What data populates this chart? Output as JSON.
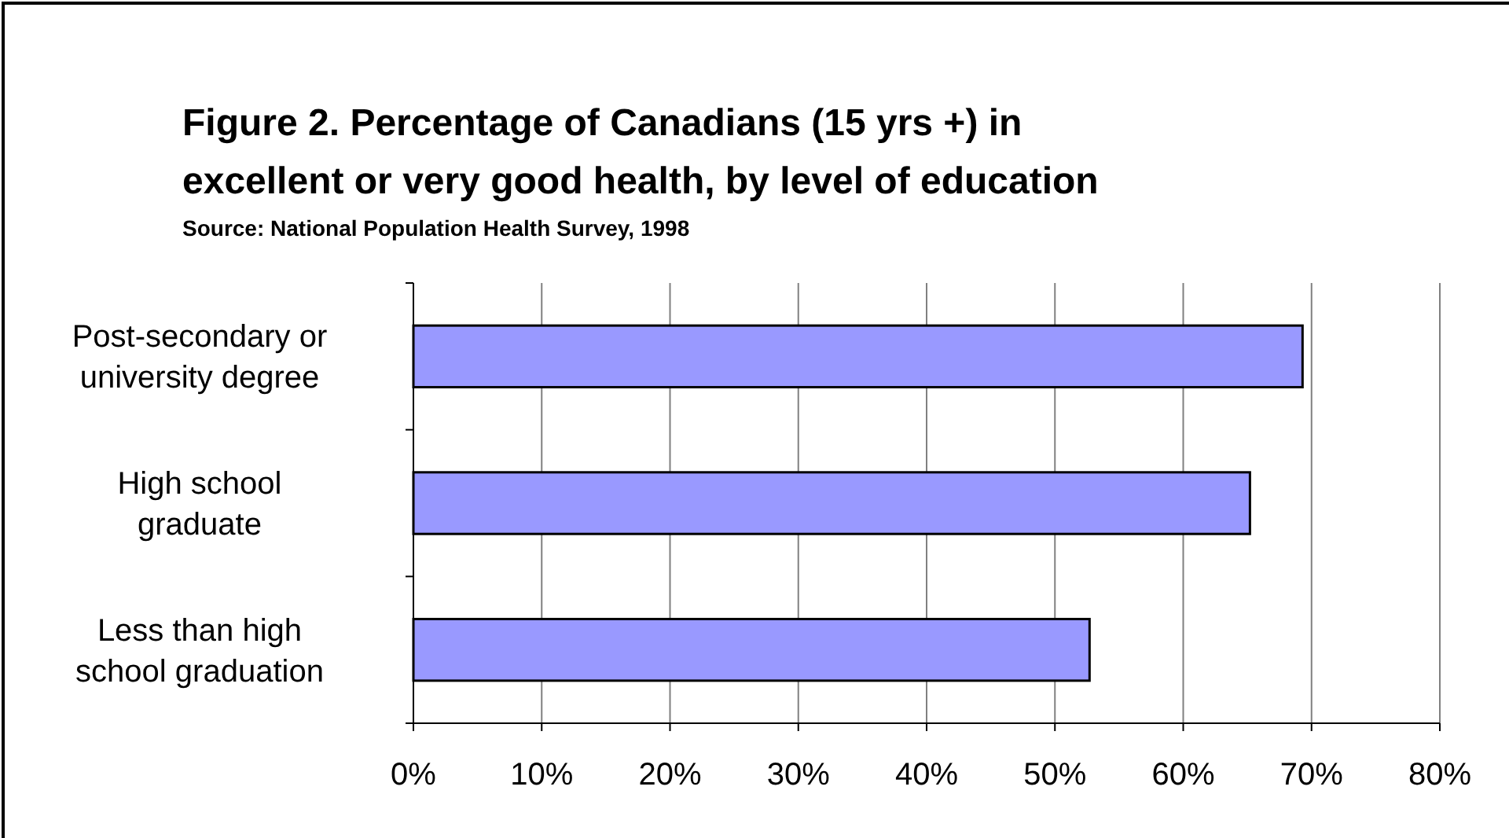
{
  "chart_data": {
    "type": "bar",
    "orientation": "horizontal",
    "title": "Figure 2. Percentage of Canadians (15 yrs +) in excellent or very good health, by level of education",
    "subtitle": "Source: National Population Health Survey, 1998",
    "categories": [
      "Post-secondary or university degree",
      "High school graduate",
      "Less than high school graduation"
    ],
    "values": [
      69.3,
      65.2,
      52.7
    ],
    "color": "#9999ff",
    "xlim": [
      0,
      80
    ],
    "xticks": [
      {
        "value": 0,
        "label": "0%"
      },
      {
        "value": 10,
        "label": "10%"
      },
      {
        "value": 20,
        "label": "20%"
      },
      {
        "value": 30,
        "label": "30%"
      },
      {
        "value": 40,
        "label": "40%"
      },
      {
        "value": 50,
        "label": "50%"
      },
      {
        "value": 60,
        "label": "60%"
      },
      {
        "value": 70,
        "label": "70%"
      },
      {
        "value": 80,
        "label": "80%"
      }
    ],
    "grid": "x"
  }
}
